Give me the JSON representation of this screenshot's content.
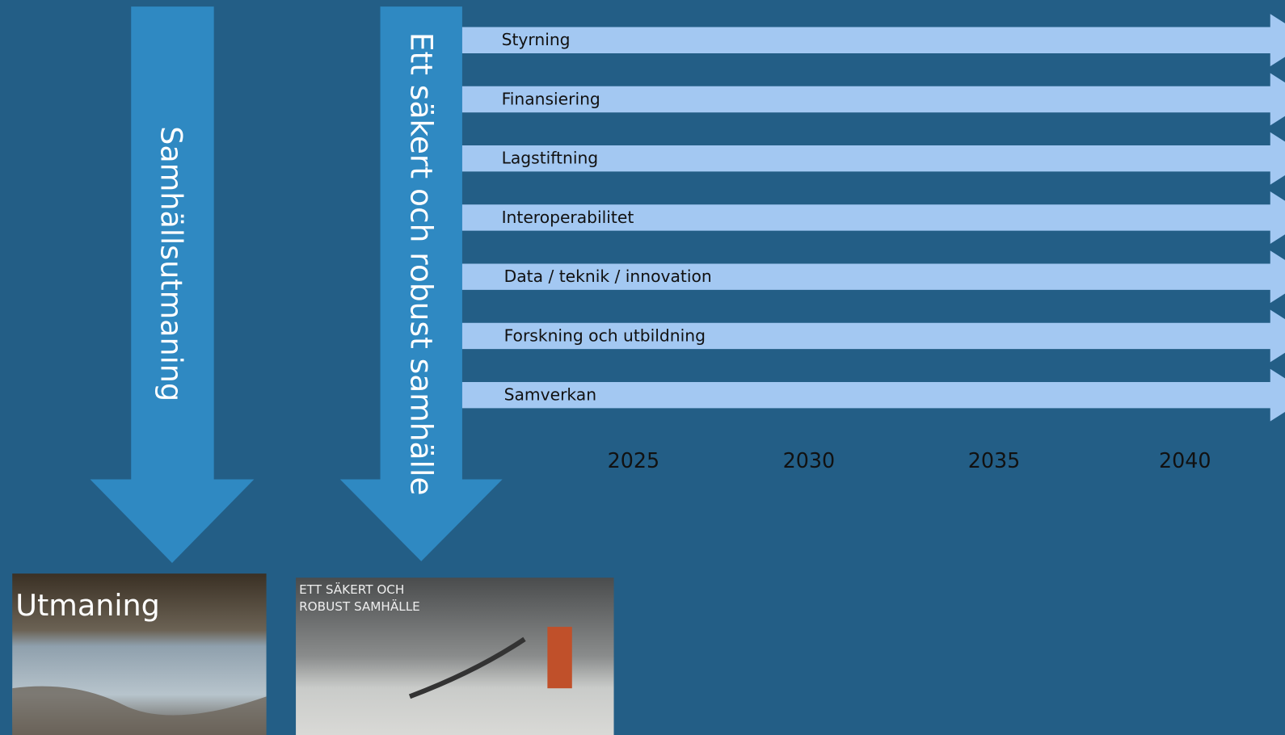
{
  "arrows": [
    {
      "label": "Samhällsutmaning"
    },
    {
      "label": "Ett säkert och robust samhälle"
    }
  ],
  "streams": [
    "Styrning",
    "Finansiering",
    "Lagstiftning",
    "Interoperabilitet",
    "Data / teknik / innovation",
    "Forskning och utbildning",
    "Samverkan"
  ],
  "years": [
    2025,
    2030,
    2035,
    2040
  ],
  "images": [
    {
      "caption": [
        "Utmaning"
      ]
    },
    {
      "caption": [
        "ETT SÄKERT OCH",
        "ROBUST SAMHÄLLE"
      ]
    }
  ]
}
